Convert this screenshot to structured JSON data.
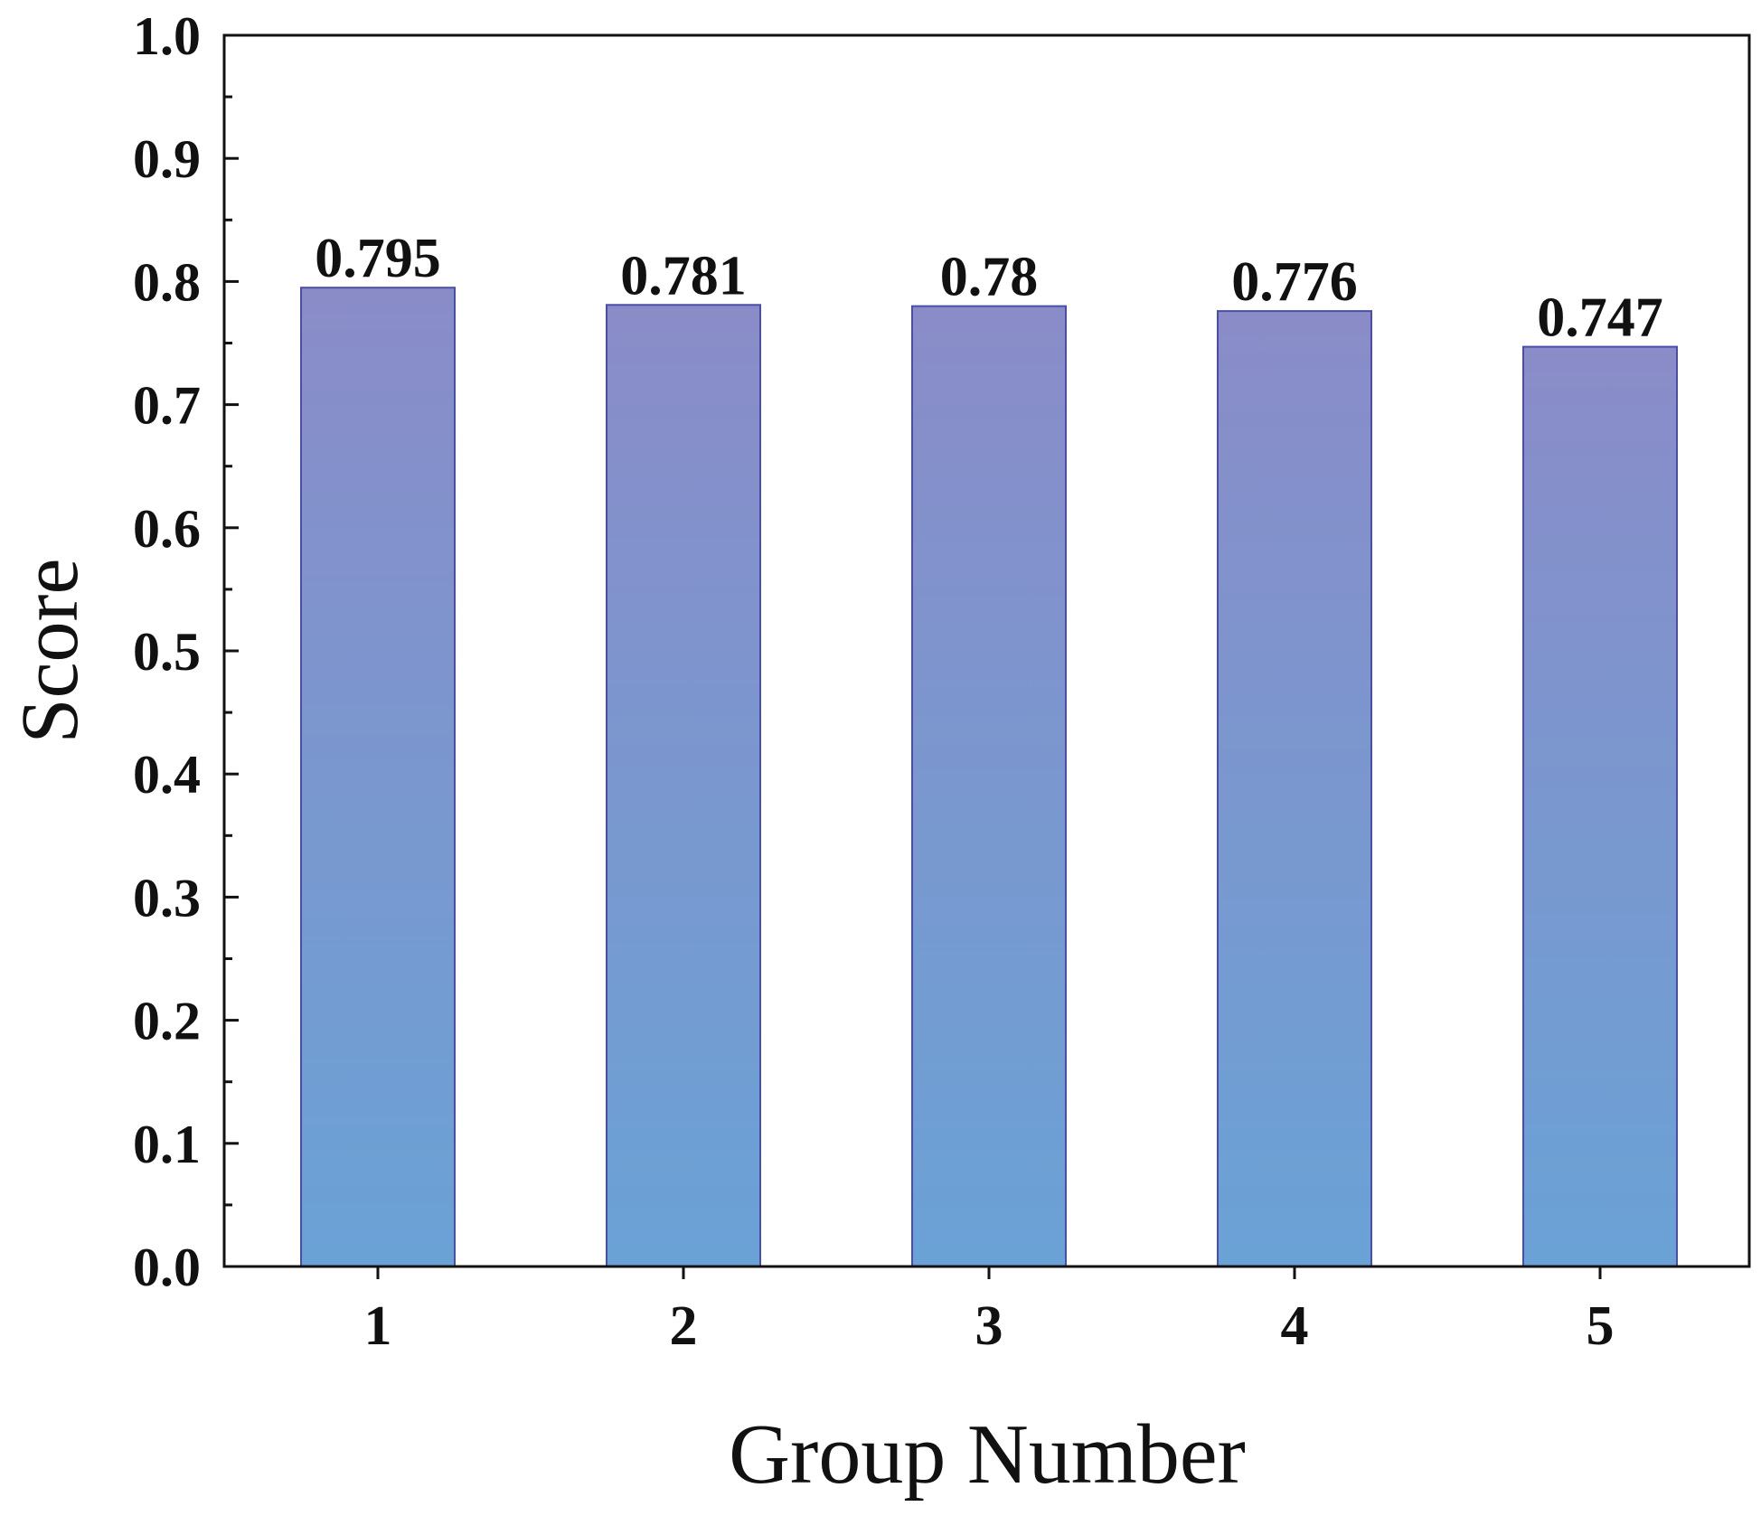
{
  "chart_data": {
    "type": "bar",
    "title": "",
    "xlabel": "Group Number",
    "ylabel": "Score",
    "categories": [
      "1",
      "2",
      "3",
      "4",
      "5"
    ],
    "values": [
      0.795,
      0.781,
      0.78,
      0.776,
      0.747
    ],
    "data_labels": [
      "0.795",
      "0.781",
      "0.78",
      "0.776",
      "0.747"
    ],
    "ylim": [
      0.0,
      1.0
    ],
    "y_ticks": [
      "0.0",
      "0.1",
      "0.2",
      "0.3",
      "0.4",
      "0.5",
      "0.6",
      "0.7",
      "0.8",
      "0.9",
      "1.0"
    ],
    "grid": false,
    "legend": "none",
    "colors": {
      "bar_top": "#8A8CC8",
      "bar_bottom": "#6AA2D6",
      "bar_edge": "#4A4EA8",
      "axis": "#111111"
    }
  }
}
